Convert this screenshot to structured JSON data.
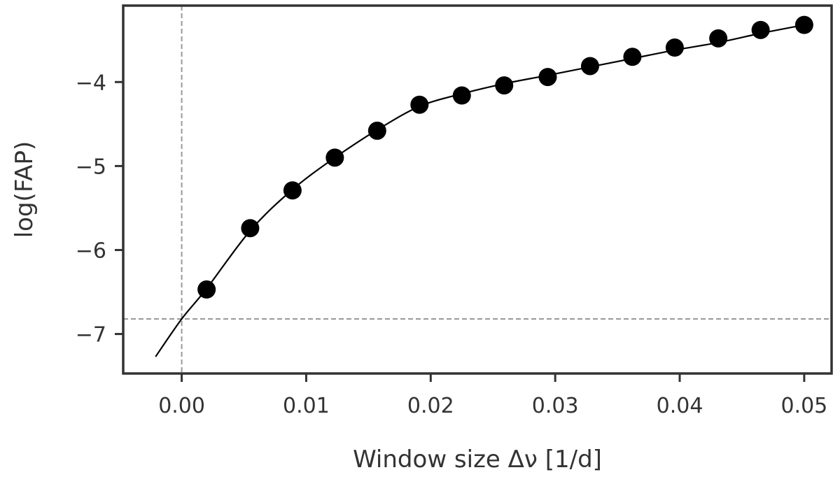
{
  "chart_data": {
    "type": "scatter",
    "title": "",
    "xlabel": "Window size Δν [1/d]",
    "ylabel": "log(FAP)",
    "xlim": [
      -0.0047,
      0.0522
    ],
    "ylim": [
      -7.47,
      -3.09
    ],
    "x_ticks": [
      0.0,
      0.01,
      0.02,
      0.03,
      0.04,
      0.05
    ],
    "x_tick_labels": [
      "0.00",
      "0.01",
      "0.02",
      "0.03",
      "0.04",
      "0.05"
    ],
    "y_ticks": [
      -4,
      -5,
      -6,
      -7
    ],
    "y_tick_labels": [
      "−4",
      "−5",
      "−6",
      "−7"
    ],
    "grid": false,
    "legend": "none",
    "series": [
      {
        "kind": "points",
        "color": "#000000",
        "x": [
          0.002,
          0.0055,
          0.0089,
          0.0123,
          0.0157,
          0.0191,
          0.0225,
          0.0259,
          0.0294,
          0.0328,
          0.0362,
          0.0396,
          0.0431,
          0.0465,
          0.05
        ],
        "y": [
          -6.47,
          -5.74,
          -5.29,
          -4.9,
          -4.58,
          -4.27,
          -4.16,
          -4.04,
          -3.94,
          -3.81,
          -3.7,
          -3.59,
          -3.48,
          -3.38,
          -3.32
        ]
      },
      {
        "kind": "fit-line",
        "color": "#000000",
        "x": [
          -0.0021,
          0.0,
          0.002,
          0.0055,
          0.0089,
          0.0123,
          0.0157,
          0.0191,
          0.0225,
          0.0259,
          0.0294,
          0.0328,
          0.0362,
          0.0396,
          0.0431,
          0.0465,
          0.05
        ],
        "y": [
          -7.27,
          -6.82,
          -6.46,
          -5.77,
          -5.28,
          -4.9,
          -4.57,
          -4.29,
          -4.14,
          -4.02,
          -3.92,
          -3.82,
          -3.72,
          -3.62,
          -3.53,
          -3.42,
          -3.32
        ]
      }
    ],
    "reference_lines": [
      {
        "orientation": "vertical",
        "value": 0.0,
        "style": "dashed",
        "color": "#999999"
      },
      {
        "orientation": "horizontal",
        "value": -6.82,
        "style": "dashed",
        "color": "#999999"
      }
    ]
  }
}
